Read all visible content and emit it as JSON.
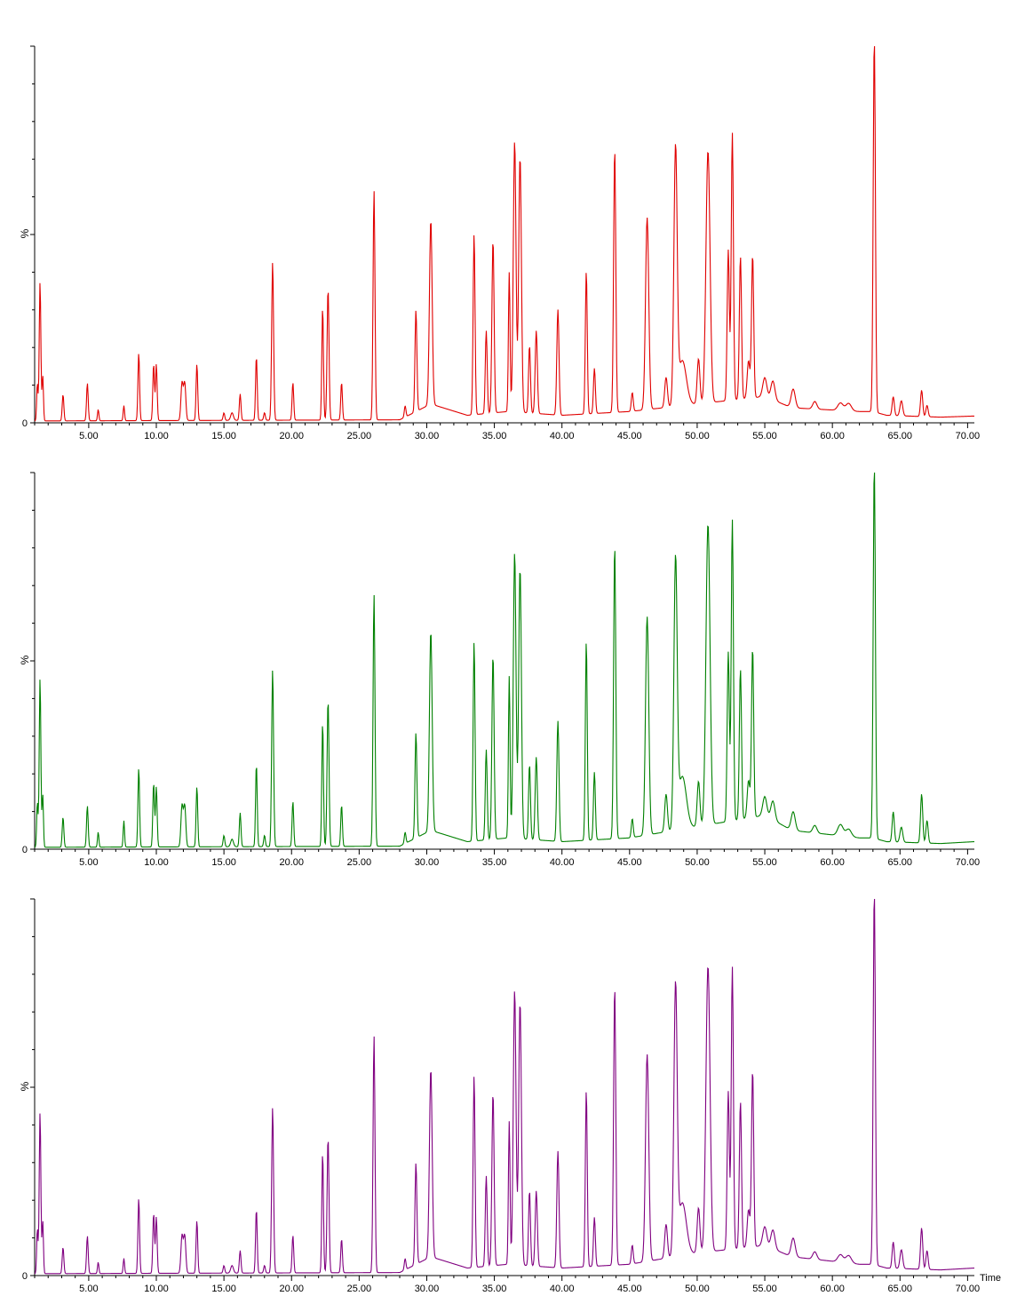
{
  "chart_data": [
    {
      "type": "line",
      "title": "",
      "xlabel": "",
      "ylabel": "%",
      "y_zero_label": "0",
      "color": "#e00000",
      "xlim": [
        1.0,
        70.5
      ],
      "ylim": [
        0,
        100
      ],
      "x_ticks": [
        5,
        10,
        15,
        20,
        25,
        30,
        35,
        40,
        45,
        50,
        55,
        60,
        65,
        70
      ],
      "x_tick_labels": [
        "5.00",
        "10.00",
        "15.00",
        "20.00",
        "25.00",
        "30.00",
        "35.00",
        "40.00",
        "45.00",
        "50.00",
        "55.00",
        "60.00",
        "65.00",
        "70.00"
      ],
      "baseline_points": [
        [
          1.0,
          0.5
        ],
        [
          28,
          0.8
        ],
        [
          30.3,
          5
        ],
        [
          33,
          2
        ],
        [
          36,
          3
        ],
        [
          40,
          2
        ],
        [
          45,
          3
        ],
        [
          50,
          5
        ],
        [
          55,
          7
        ],
        [
          57,
          4
        ],
        [
          62,
          3
        ],
        [
          63,
          3
        ],
        [
          64,
          2
        ],
        [
          68,
          1.5
        ],
        [
          70.5,
          1.8
        ]
      ],
      "peaks": [
        [
          1.2,
          10,
          0.05
        ],
        [
          1.4,
          37,
          0.06
        ],
        [
          1.6,
          12,
          0.05
        ],
        [
          3.1,
          7,
          0.06
        ],
        [
          4.9,
          10,
          0.06
        ],
        [
          5.7,
          3,
          0.05
        ],
        [
          7.6,
          4,
          0.05
        ],
        [
          8.7,
          18,
          0.06
        ],
        [
          9.8,
          15,
          0.06
        ],
        [
          10.0,
          15,
          0.06
        ],
        [
          11.9,
          10,
          0.08
        ],
        [
          12.1,
          10,
          0.08
        ],
        [
          13.0,
          15,
          0.06
        ],
        [
          15.0,
          2,
          0.06
        ],
        [
          15.6,
          2,
          0.1
        ],
        [
          16.2,
          7,
          0.06
        ],
        [
          17.4,
          17,
          0.06
        ],
        [
          18.0,
          2,
          0.06
        ],
        [
          18.6,
          42,
          0.07
        ],
        [
          20.1,
          10,
          0.06
        ],
        [
          22.3,
          30,
          0.06
        ],
        [
          22.7,
          35,
          0.07
        ],
        [
          23.7,
          10,
          0.06
        ],
        [
          26.1,
          61,
          0.07
        ],
        [
          28.4,
          3,
          0.06
        ],
        [
          29.2,
          27,
          0.07
        ],
        [
          30.3,
          49,
          0.1
        ],
        [
          33.5,
          48,
          0.07
        ],
        [
          34.4,
          22,
          0.07
        ],
        [
          34.9,
          46,
          0.08
        ],
        [
          36.1,
          37,
          0.06
        ],
        [
          36.5,
          72,
          0.1
        ],
        [
          36.9,
          68,
          0.1
        ],
        [
          37.6,
          18,
          0.07
        ],
        [
          38.1,
          22,
          0.08
        ],
        [
          39.7,
          28,
          0.08
        ],
        [
          41.8,
          38,
          0.07
        ],
        [
          42.4,
          12,
          0.07
        ],
        [
          43.9,
          70,
          0.08
        ],
        [
          45.2,
          5,
          0.07
        ],
        [
          46.3,
          51,
          0.12
        ],
        [
          47.7,
          8,
          0.1
        ],
        [
          48.4,
          67,
          0.12
        ],
        [
          48.9,
          12,
          0.3
        ],
        [
          50.1,
          12,
          0.1
        ],
        [
          50.8,
          67,
          0.15
        ],
        [
          52.3,
          40,
          0.08
        ],
        [
          52.6,
          71,
          0.08
        ],
        [
          53.2,
          38,
          0.08
        ],
        [
          53.8,
          10,
          0.1
        ],
        [
          54.1,
          38,
          0.08
        ],
        [
          55.0,
          5,
          0.15
        ],
        [
          55.6,
          5,
          0.15
        ],
        [
          57.1,
          5,
          0.15
        ],
        [
          58.7,
          2,
          0.15
        ],
        [
          60.6,
          2,
          0.2
        ],
        [
          61.2,
          2,
          0.2
        ],
        [
          63.1,
          100,
          0.08
        ],
        [
          64.5,
          5,
          0.08
        ],
        [
          65.1,
          4,
          0.1
        ],
        [
          66.6,
          7,
          0.08
        ],
        [
          67.0,
          3,
          0.08
        ]
      ]
    },
    {
      "type": "line",
      "title": "",
      "xlabel": "",
      "ylabel": "%",
      "y_zero_label": "0",
      "color": "#008000",
      "xlim": [
        1.0,
        70.5
      ],
      "ylim": [
        0,
        100
      ],
      "x_ticks": [
        5,
        10,
        15,
        20,
        25,
        30,
        35,
        40,
        45,
        50,
        55,
        60,
        65,
        70
      ],
      "x_tick_labels": [
        "5.00",
        "10.00",
        "15.00",
        "20.00",
        "25.00",
        "30.00",
        "35.00",
        "40.00",
        "45.00",
        "50.00",
        "55.00",
        "60.00",
        "65.00",
        "70.00"
      ],
      "baseline_points": [
        [
          1.0,
          0.5
        ],
        [
          28,
          0.8
        ],
        [
          30.3,
          5
        ],
        [
          33,
          2
        ],
        [
          36,
          3
        ],
        [
          40,
          2
        ],
        [
          45,
          3
        ],
        [
          50,
          6
        ],
        [
          55,
          9
        ],
        [
          57,
          5
        ],
        [
          62,
          3
        ],
        [
          63,
          3
        ],
        [
          64,
          2
        ],
        [
          68,
          1.5
        ],
        [
          70.5,
          2
        ]
      ],
      "peaks": [
        [
          1.2,
          12,
          0.05
        ],
        [
          1.4,
          45,
          0.06
        ],
        [
          1.6,
          14,
          0.05
        ],
        [
          3.1,
          8,
          0.06
        ],
        [
          4.9,
          11,
          0.06
        ],
        [
          5.7,
          4,
          0.05
        ],
        [
          7.6,
          7,
          0.05
        ],
        [
          8.7,
          21,
          0.06
        ],
        [
          9.8,
          17,
          0.06
        ],
        [
          10.0,
          16,
          0.06
        ],
        [
          11.9,
          11,
          0.08
        ],
        [
          12.1,
          11,
          0.08
        ],
        [
          13.0,
          16,
          0.06
        ],
        [
          15.0,
          3,
          0.06
        ],
        [
          15.6,
          2,
          0.1
        ],
        [
          16.2,
          9,
          0.06
        ],
        [
          17.4,
          22,
          0.06
        ],
        [
          18.0,
          3,
          0.06
        ],
        [
          18.6,
          47,
          0.07
        ],
        [
          20.1,
          12,
          0.06
        ],
        [
          22.3,
          33,
          0.06
        ],
        [
          22.7,
          39,
          0.07
        ],
        [
          23.7,
          11,
          0.06
        ],
        [
          26.1,
          67,
          0.07
        ],
        [
          28.4,
          3,
          0.06
        ],
        [
          29.2,
          28,
          0.07
        ],
        [
          30.3,
          53,
          0.1
        ],
        [
          33.5,
          53,
          0.07
        ],
        [
          34.4,
          24,
          0.07
        ],
        [
          34.9,
          49,
          0.08
        ],
        [
          36.1,
          43,
          0.06
        ],
        [
          36.5,
          76,
          0.1
        ],
        [
          36.9,
          72,
          0.1
        ],
        [
          37.6,
          20,
          0.07
        ],
        [
          38.1,
          22,
          0.08
        ],
        [
          39.7,
          32,
          0.08
        ],
        [
          41.8,
          53,
          0.07
        ],
        [
          42.4,
          18,
          0.07
        ],
        [
          43.9,
          78,
          0.08
        ],
        [
          45.2,
          5,
          0.07
        ],
        [
          46.3,
          58,
          0.12
        ],
        [
          47.7,
          10,
          0.1
        ],
        [
          48.4,
          70,
          0.12
        ],
        [
          48.9,
          14,
          0.3
        ],
        [
          50.1,
          12,
          0.1
        ],
        [
          50.8,
          80,
          0.15
        ],
        [
          52.3,
          45,
          0.08
        ],
        [
          52.6,
          80,
          0.08
        ],
        [
          53.2,
          40,
          0.08
        ],
        [
          53.8,
          10,
          0.1
        ],
        [
          54.1,
          45,
          0.08
        ],
        [
          55.0,
          5,
          0.15
        ],
        [
          55.6,
          5,
          0.15
        ],
        [
          57.1,
          5,
          0.15
        ],
        [
          58.7,
          2,
          0.15
        ],
        [
          60.6,
          3,
          0.2
        ],
        [
          61.2,
          2,
          0.2
        ],
        [
          63.1,
          100,
          0.08
        ],
        [
          64.5,
          8,
          0.08
        ],
        [
          65.1,
          4,
          0.1
        ],
        [
          66.6,
          13,
          0.08
        ],
        [
          67.0,
          6,
          0.08
        ]
      ]
    },
    {
      "type": "line",
      "title": "",
      "xlabel": "Time",
      "ylabel": "%",
      "y_zero_label": "0",
      "color": "#800080",
      "xlim": [
        1.0,
        70.5
      ],
      "ylim": [
        0,
        100
      ],
      "x_ticks": [
        5,
        10,
        15,
        20,
        25,
        30,
        35,
        40,
        45,
        50,
        55,
        60,
        65,
        70
      ],
      "x_tick_labels": [
        "5.00",
        "10.00",
        "15.00",
        "20.00",
        "25.00",
        "30.00",
        "35.00",
        "40.00",
        "45.00",
        "50.00",
        "55.00",
        "60.00",
        "65.00",
        "70.00"
      ],
      "baseline_points": [
        [
          1.0,
          0.5
        ],
        [
          28,
          0.8
        ],
        [
          30.3,
          5
        ],
        [
          33,
          2
        ],
        [
          36,
          3
        ],
        [
          40,
          2
        ],
        [
          45,
          3
        ],
        [
          50,
          6
        ],
        [
          55,
          8
        ],
        [
          57,
          5
        ],
        [
          62,
          3
        ],
        [
          63,
          3
        ],
        [
          64,
          2
        ],
        [
          68,
          1.5
        ],
        [
          70.5,
          2
        ]
      ],
      "peaks": [
        [
          1.2,
          12,
          0.05
        ],
        [
          1.4,
          43,
          0.06
        ],
        [
          1.6,
          14,
          0.05
        ],
        [
          3.1,
          7,
          0.06
        ],
        [
          4.9,
          10,
          0.06
        ],
        [
          5.7,
          3,
          0.05
        ],
        [
          7.6,
          4,
          0.05
        ],
        [
          8.7,
          20,
          0.06
        ],
        [
          9.8,
          16,
          0.06
        ],
        [
          10.0,
          15,
          0.06
        ],
        [
          11.9,
          10,
          0.08
        ],
        [
          12.1,
          10,
          0.08
        ],
        [
          13.0,
          14,
          0.06
        ],
        [
          15.0,
          2,
          0.06
        ],
        [
          15.6,
          2,
          0.1
        ],
        [
          16.2,
          6,
          0.06
        ],
        [
          17.4,
          17,
          0.06
        ],
        [
          18.0,
          2,
          0.06
        ],
        [
          18.6,
          44,
          0.07
        ],
        [
          20.1,
          10,
          0.06
        ],
        [
          22.3,
          32,
          0.06
        ],
        [
          22.7,
          36,
          0.07
        ],
        [
          23.7,
          9,
          0.06
        ],
        [
          26.1,
          63,
          0.07
        ],
        [
          28.4,
          3,
          0.06
        ],
        [
          29.2,
          27,
          0.07
        ],
        [
          30.3,
          50,
          0.1
        ],
        [
          33.5,
          51,
          0.07
        ],
        [
          34.4,
          24,
          0.07
        ],
        [
          34.9,
          46,
          0.08
        ],
        [
          36.1,
          38,
          0.06
        ],
        [
          36.5,
          73,
          0.1
        ],
        [
          36.9,
          70,
          0.1
        ],
        [
          37.6,
          20,
          0.07
        ],
        [
          38.1,
          20,
          0.08
        ],
        [
          39.7,
          31,
          0.08
        ],
        [
          41.8,
          47,
          0.07
        ],
        [
          42.4,
          13,
          0.07
        ],
        [
          43.9,
          74,
          0.08
        ],
        [
          45.2,
          5,
          0.07
        ],
        [
          46.3,
          55,
          0.12
        ],
        [
          47.7,
          9,
          0.1
        ],
        [
          48.4,
          70,
          0.12
        ],
        [
          48.9,
          14,
          0.3
        ],
        [
          50.1,
          12,
          0.1
        ],
        [
          50.8,
          76,
          0.15
        ],
        [
          52.3,
          42,
          0.08
        ],
        [
          52.6,
          75,
          0.08
        ],
        [
          53.2,
          39,
          0.08
        ],
        [
          53.8,
          10,
          0.1
        ],
        [
          54.1,
          47,
          0.08
        ],
        [
          55.0,
          5,
          0.15
        ],
        [
          55.6,
          5,
          0.15
        ],
        [
          57.1,
          5,
          0.15
        ],
        [
          58.7,
          2,
          0.15
        ],
        [
          60.6,
          2,
          0.2
        ],
        [
          61.2,
          2,
          0.2
        ],
        [
          63.1,
          100,
          0.08
        ],
        [
          64.5,
          7,
          0.08
        ],
        [
          65.1,
          5,
          0.1
        ],
        [
          66.6,
          11,
          0.08
        ],
        [
          67.0,
          5,
          0.08
        ]
      ]
    }
  ]
}
